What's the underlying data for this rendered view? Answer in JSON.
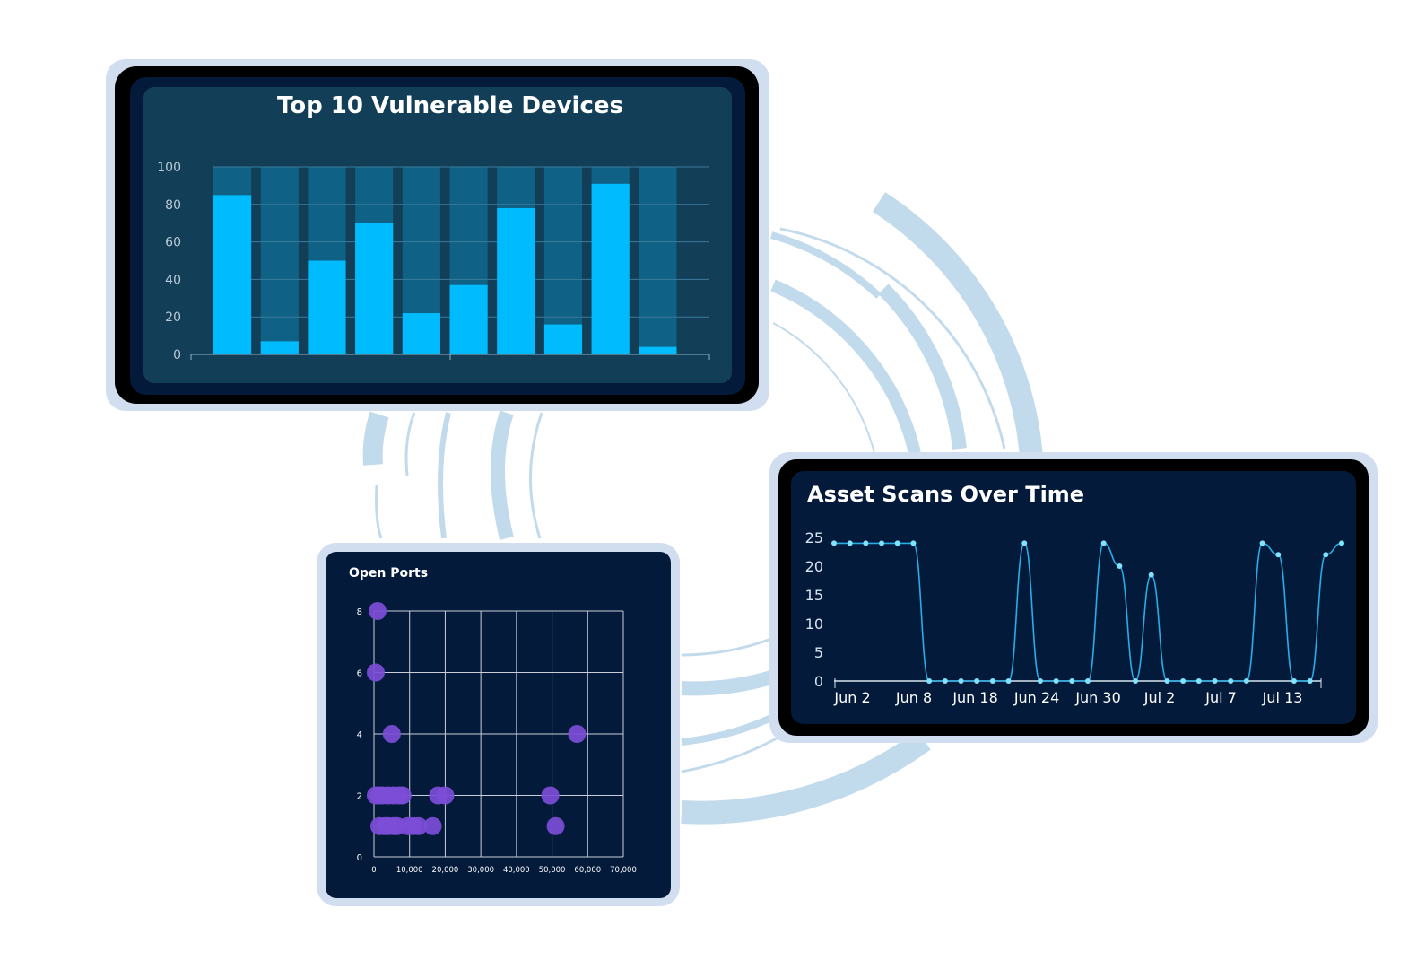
{
  "colors": {
    "background": "#ffffff",
    "ring": "#c2dbec",
    "frame": "#d1deef",
    "panel_dark": "#041a3a",
    "bar_panel": "#133e57",
    "bar_track": "#0f6186",
    "bar_fill": "#00bcff",
    "line": "#27aee8",
    "marker": "#7fe3ff",
    "scatter_point": "#7c4dd7"
  },
  "chart_data": [
    {
      "type": "bar",
      "title": "Top 10 Vulnerable Devices",
      "categories": [
        "",
        "",
        "",
        "",
        "",
        "",
        "",
        "",
        "",
        ""
      ],
      "values": [
        85,
        7,
        50,
        70,
        22,
        37,
        78,
        16,
        91,
        4
      ],
      "background_values": [
        100,
        100,
        100,
        100,
        100,
        100,
        100,
        100,
        100,
        100
      ],
      "ylim": [
        0,
        100
      ],
      "yticks": [
        "0",
        "20",
        "40",
        "60",
        "80",
        "100"
      ],
      "grid": true
    },
    {
      "type": "line",
      "title": "Asset Scans Over Time",
      "x_tick_labels": [
        "Jun 2",
        "Jun 8",
        "Jun 18",
        "Jun 24",
        "Jun 30",
        "Jul 2",
        "Jul 7",
        "Jul 13"
      ],
      "yticks": [
        "0",
        "5",
        "10",
        "15",
        "20",
        "25"
      ],
      "ylim": [
        0,
        25
      ],
      "values": [
        24,
        24,
        24,
        24,
        24,
        24,
        0,
        0,
        0,
        0,
        0,
        0,
        24,
        0,
        0,
        0,
        0,
        24,
        20,
        0,
        18.5,
        0,
        0,
        0,
        0,
        0,
        0,
        24,
        22,
        0,
        0,
        22,
        24
      ],
      "grid": false
    },
    {
      "type": "scatter",
      "title": "Open Ports",
      "xticks": [
        "0",
        "10,000",
        "20,000",
        "30,000",
        "40,000",
        "50,000",
        "60,000",
        "70,000"
      ],
      "yticks": [
        "0",
        "2",
        "4",
        "6",
        "8"
      ],
      "xlim": [
        0,
        70000
      ],
      "ylim": [
        0,
        8
      ],
      "grid": true,
      "points": [
        [
          1000,
          8
        ],
        [
          500,
          6
        ],
        [
          5000,
          4
        ],
        [
          57000,
          4
        ],
        [
          500,
          2
        ],
        [
          1500,
          2
        ],
        [
          2500,
          2
        ],
        [
          4000,
          2
        ],
        [
          5500,
          2
        ],
        [
          7000,
          2
        ],
        [
          8000,
          2
        ],
        [
          18000,
          2
        ],
        [
          20000,
          2
        ],
        [
          49500,
          2
        ],
        [
          1500,
          1
        ],
        [
          3000,
          1
        ],
        [
          4000,
          1
        ],
        [
          5500,
          1
        ],
        [
          6500,
          1
        ],
        [
          9500,
          1
        ],
        [
          11000,
          1
        ],
        [
          12500,
          1
        ],
        [
          16500,
          1
        ],
        [
          51000,
          1
        ]
      ]
    }
  ]
}
